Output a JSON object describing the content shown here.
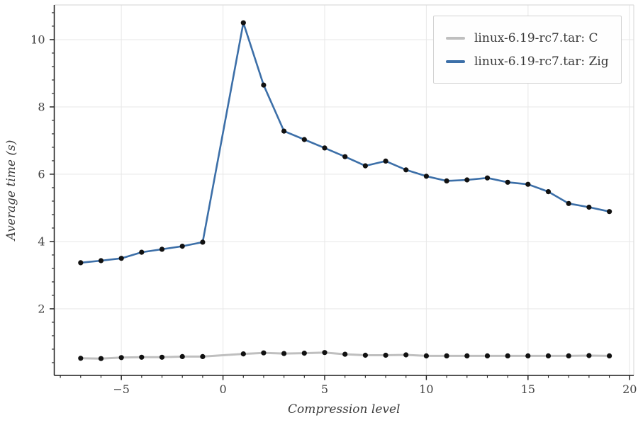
{
  "chart_data": {
    "type": "line",
    "title": "",
    "xlabel": "Compression level",
    "ylabel": "Average time (s)",
    "xlim": [
      -8.3,
      20.2
    ],
    "ylim": [
      0.02,
      11.03
    ],
    "grid": true,
    "legend_position": "upper right",
    "x_tick_values": [
      -5,
      0,
      5,
      10,
      15,
      20
    ],
    "x_tick_labels": [
      "−5",
      "0",
      "5",
      "10",
      "15",
      "20"
    ],
    "y_tick_values": [
      2,
      4,
      6,
      8,
      10
    ],
    "y_tick_labels": [
      "2",
      "4",
      "6",
      "8",
      "10"
    ],
    "x_minor_step": 1,
    "y_minor_step": 0.4,
    "colors": {
      "grid": "#e9e9e9",
      "spine_dark": "#1a1a1a",
      "spine_light": "#dcdcdc",
      "marker": "#111111"
    },
    "series": [
      {
        "name": "linux-6.19-rc7.tar: C",
        "color": "#bfbfbf",
        "x": [
          -7,
          -6,
          -5,
          -4,
          -3,
          -2,
          -1,
          1,
          2,
          3,
          4,
          5,
          6,
          7,
          8,
          9,
          10,
          11,
          12,
          13,
          14,
          15,
          16,
          17,
          18,
          19
        ],
        "y": [
          0.53,
          0.52,
          0.55,
          0.56,
          0.56,
          0.58,
          0.58,
          0.66,
          0.69,
          0.67,
          0.68,
          0.7,
          0.65,
          0.62,
          0.62,
          0.63,
          0.6,
          0.6,
          0.6,
          0.6,
          0.6,
          0.6,
          0.6,
          0.6,
          0.61,
          0.6
        ]
      },
      {
        "name": "linux-6.19-rc7.tar: Zig",
        "color": "#3c6fa8",
        "x": [
          -7,
          -6,
          -5,
          -4,
          -3,
          -2,
          -1,
          1,
          2,
          3,
          4,
          5,
          6,
          7,
          8,
          9,
          10,
          11,
          12,
          13,
          14,
          15,
          16,
          17,
          18,
          19
        ],
        "y": [
          3.37,
          3.43,
          3.5,
          3.68,
          3.77,
          3.86,
          3.98,
          10.5,
          8.65,
          7.28,
          7.03,
          6.78,
          6.52,
          6.25,
          6.39,
          6.13,
          5.94,
          5.8,
          5.83,
          5.89,
          5.76,
          5.7,
          5.48,
          5.13,
          5.02,
          4.89
        ]
      }
    ]
  }
}
